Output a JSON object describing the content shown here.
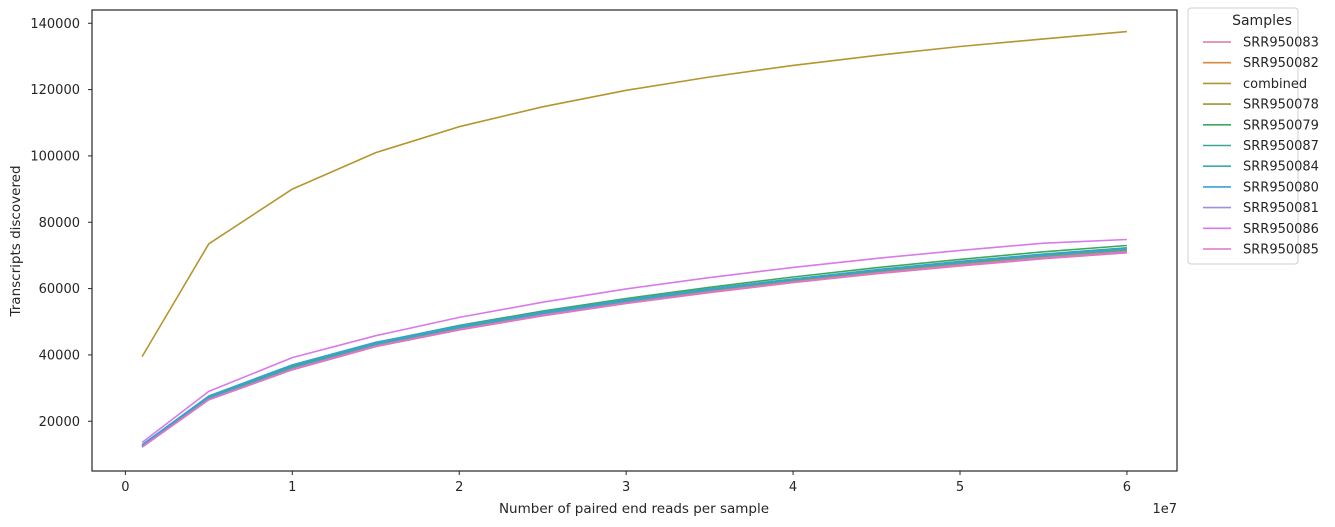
{
  "chart_data": {
    "type": "line",
    "xlabel": "Number of paired end reads per sample",
    "ylabel": "Transcripts discovered",
    "x_offset_label": "1e7",
    "xlim": [
      -2000000,
      63000000
    ],
    "ylim": [
      5000,
      144000
    ],
    "xticks": [
      0,
      10000000,
      20000000,
      30000000,
      40000000,
      50000000,
      60000000
    ],
    "xtick_labels": [
      "0",
      "1",
      "2",
      "3",
      "4",
      "5",
      "6"
    ],
    "yticks": [
      20000,
      40000,
      60000,
      80000,
      100000,
      120000,
      140000
    ],
    "ytick_labels": [
      "20000",
      "40000",
      "60000",
      "80000",
      "100000",
      "120000",
      "140000"
    ],
    "grid": false,
    "legend": {
      "title": "Samples",
      "placement": "outside-top-right"
    },
    "x": [
      1000000,
      5000000,
      10000000,
      15000000,
      20000000,
      25000000,
      30000000,
      35000000,
      40000000,
      45000000,
      50000000,
      55000000,
      60000000
    ],
    "series": [
      {
        "name": "SRR950083",
        "color": "#e1779a",
        "values": [
          12200,
          26500,
          35500,
          42500,
          47500,
          51800,
          55500,
          58800,
          61800,
          64500,
          66800,
          69000,
          70800
        ]
      },
      {
        "name": "SRR950082",
        "color": "#d98a41",
        "values": [
          12300,
          26700,
          35800,
          42800,
          47800,
          52100,
          55800,
          59100,
          62100,
          64800,
          67200,
          69400,
          71200
        ]
      },
      {
        "name": "combined",
        "color": "#b5962e",
        "values": [
          39500,
          73500,
          90000,
          101000,
          108800,
          114800,
          119800,
          123800,
          127300,
          130300,
          133000,
          135300,
          137500
        ]
      },
      {
        "name": "SRR950078",
        "color": "#999a30",
        "values": [
          12400,
          26800,
          36000,
          43000,
          48000,
          52300,
          56000,
          59300,
          62300,
          65000,
          67400,
          69600,
          71400
        ]
      },
      {
        "name": "SRR950079",
        "color": "#3aaa5a",
        "values": [
          12700,
          27300,
          36700,
          43700,
          48900,
          53200,
          57000,
          60400,
          63500,
          66300,
          68800,
          71100,
          73000
        ]
      },
      {
        "name": "SRR950087",
        "color": "#3aa894",
        "values": [
          12600,
          27100,
          36400,
          43400,
          48500,
          52800,
          56500,
          59900,
          62900,
          65700,
          68200,
          70400,
          72300
        ]
      },
      {
        "name": "SRR950084",
        "color": "#3aaab0",
        "values": [
          12500,
          27000,
          36200,
          43200,
          48200,
          52500,
          56200,
          59600,
          62600,
          65300,
          67800,
          70000,
          71800
        ]
      },
      {
        "name": "SRR950080",
        "color": "#3aa0d6",
        "values": [
          12900,
          27600,
          37000,
          43800,
          48700,
          52900,
          56600,
          59900,
          62900,
          65600,
          68100,
          70300,
          72100
        ]
      },
      {
        "name": "SRR950081",
        "color": "#9c90e0",
        "values": [
          12300,
          26600,
          35700,
          42700,
          47700,
          52000,
          55700,
          59000,
          62000,
          64700,
          67100,
          69300,
          71100
        ]
      },
      {
        "name": "SRR950086",
        "color": "#d87ae8",
        "values": [
          13600,
          29000,
          39200,
          45800,
          51300,
          55900,
          59900,
          63300,
          66400,
          69100,
          71500,
          73700,
          74800
        ]
      },
      {
        "name": "SRR950085",
        "color": "#e274c6",
        "values": [
          12200,
          26500,
          35600,
          42600,
          47600,
          51900,
          55600,
          58900,
          61900,
          64600,
          66900,
          69100,
          70900
        ]
      }
    ]
  }
}
